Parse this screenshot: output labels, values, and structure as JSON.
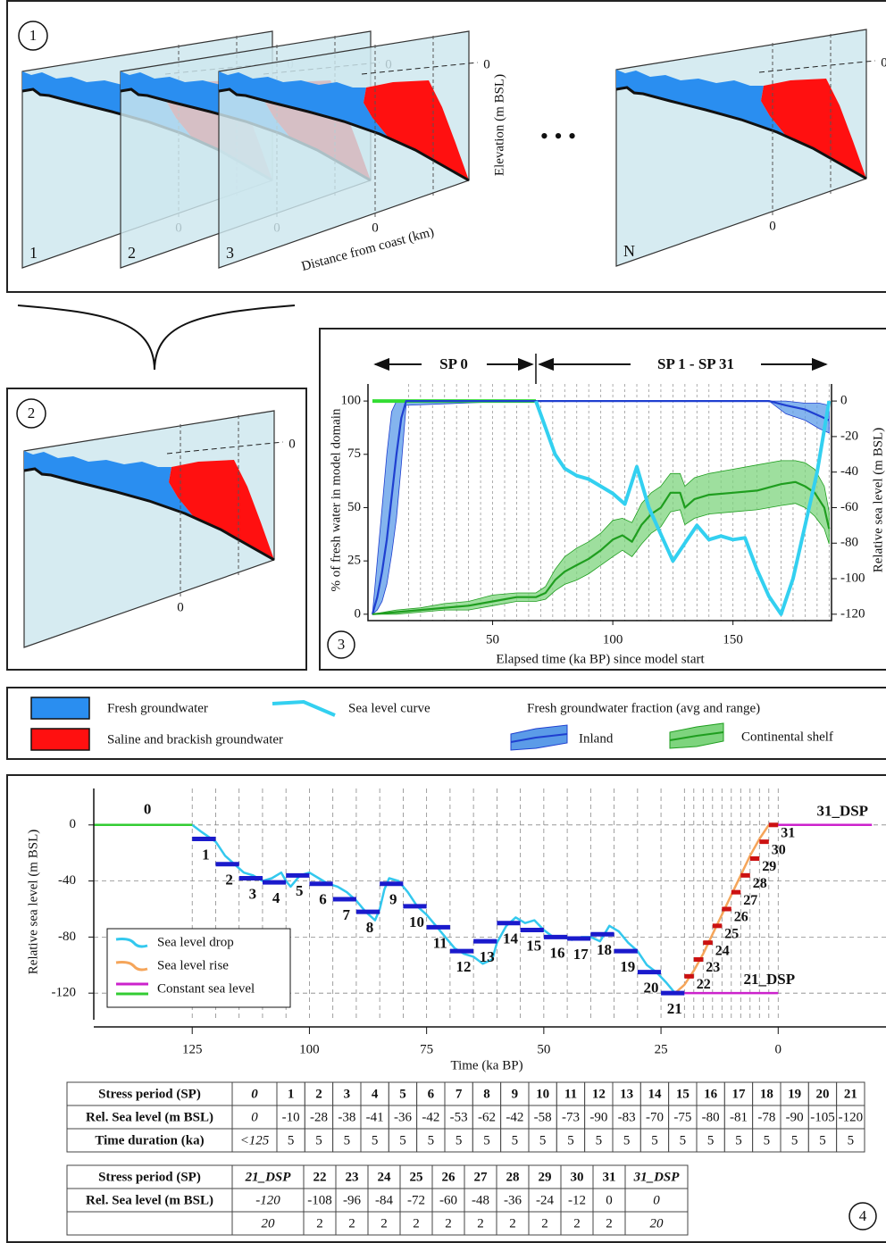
{
  "panel1": {
    "number": "1",
    "slices": [
      "1",
      "2",
      "3",
      "N"
    ],
    "zero": "0",
    "y_label": "Elevation (m BSL)",
    "x_label": "Distance from coast (km)",
    "ellipsis": "• • •"
  },
  "panel2": {
    "number": "2",
    "zero": "0"
  },
  "legend": {
    "fresh": "Fresh groundwater",
    "saline": "Saline and brackish groundwater",
    "fraction_title": "Fresh groundwater fraction (avg and range)",
    "fresh_color": "#2a8ef0",
    "saline_color": "#ff1010"
  },
  "chart_data": [
    {
      "type": "line",
      "number": "3",
      "phase_labels": [
        "SP 0",
        "SP 1 - SP 31"
      ],
      "x_label": "Elapsed time (ka BP) since model start",
      "y_label": "% of fresh water in model domain",
      "y2_label": "Relative sea level (m BSL)",
      "xlim": [
        0,
        191
      ],
      "xticks": [
        50,
        100,
        150
      ],
      "ylim": [
        -3,
        108
      ],
      "yticks": [
        0,
        25,
        50,
        75,
        100
      ],
      "y2lim": [
        -123.6,
        9.6
      ],
      "y2ticks": [
        0,
        -20,
        -40,
        -60,
        -80,
        -100,
        -120
      ],
      "series": [
        {
          "name": "Sea level curve",
          "color": "#33d0f0",
          "axis": "y2",
          "x": [
            68,
            72,
            76,
            80,
            85,
            90,
            95,
            100,
            105,
            110,
            115,
            120,
            125,
            130,
            135,
            140,
            145,
            150,
            155,
            160,
            165,
            170,
            175,
            180,
            185,
            190
          ],
          "values": [
            0,
            -15,
            -30,
            -38,
            -42,
            -44,
            -48,
            -52,
            -58,
            -37,
            -60,
            -75,
            -90,
            -80,
            -70,
            -78,
            -76,
            -78,
            -77,
            -95,
            -110,
            -120,
            -100,
            -70,
            -40,
            0
          ]
        },
        {
          "name": "Inland",
          "color": "#1f3fd0",
          "band_color": "#5b9be8",
          "x": [
            0,
            2,
            4,
            6,
            8,
            10,
            12,
            14,
            60,
            120,
            165,
            172,
            180,
            186,
            190
          ],
          "values": [
            0,
            8,
            20,
            35,
            55,
            75,
            92,
            100,
            100,
            100,
            100,
            98,
            96,
            93,
            91
          ],
          "lower": [
            0,
            2,
            6,
            14,
            28,
            45,
            70,
            98,
            100,
            100,
            100,
            94,
            91,
            87,
            85
          ],
          "upper": [
            0,
            25,
            50,
            75,
            95,
            100,
            100,
            100,
            100,
            100,
            100,
            100,
            99,
            99,
            98
          ]
        },
        {
          "name": "Continental shelf",
          "color": "#1f9e1f",
          "band_color": "#7ed47e",
          "x": [
            0,
            10,
            20,
            30,
            40,
            50,
            60,
            68,
            72,
            76,
            80,
            85,
            90,
            95,
            100,
            104,
            108,
            112,
            116,
            120,
            124,
            128,
            130,
            134,
            140,
            150,
            160,
            170,
            176,
            180,
            184,
            188,
            190
          ],
          "values": [
            0,
            1,
            2,
            3,
            4,
            6,
            8,
            8,
            10,
            16,
            20,
            23,
            26,
            30,
            35,
            37,
            34,
            42,
            47,
            50,
            57,
            57,
            50,
            54,
            56,
            57,
            58,
            61,
            62,
            60,
            57,
            50,
            40
          ],
          "lower": [
            0,
            0,
            1,
            2,
            2,
            4,
            6,
            6,
            7,
            11,
            14,
            16,
            19,
            23,
            27,
            30,
            27,
            33,
            38,
            41,
            48,
            49,
            42,
            45,
            47,
            48,
            49,
            51,
            52,
            50,
            46,
            40,
            33
          ],
          "upper": [
            0,
            2,
            3,
            5,
            6,
            9,
            10,
            10,
            13,
            21,
            27,
            31,
            34,
            38,
            44,
            45,
            43,
            52,
            57,
            60,
            66,
            66,
            60,
            64,
            66,
            68,
            70,
            72,
            72,
            71,
            68,
            60,
            48
          ]
        },
        {
          "color": "#33dd33",
          "axis": "y2",
          "x": [
            0,
            68
          ],
          "values": [
            0,
            0
          ]
        }
      ]
    },
    {
      "type": "line",
      "number": "4",
      "x_label": "Time (ka BP)",
      "y_label": "Relative sea level (m BSL)",
      "xlim": [
        146,
        -23
      ],
      "xticks": [
        125,
        100,
        75,
        50,
        25,
        0
      ],
      "ylim": [
        -139,
        26
      ],
      "yticks": [
        0,
        -40,
        -80,
        -120
      ],
      "grid": true,
      "colors": {
        "sp0": "#33cc33",
        "drop": "#1a1acc",
        "rise": "#cc1111",
        "dsp": "#cc22cc"
      },
      "constant_label": "Constant sea level",
      "series": [
        {
          "name": "Sea level drop",
          "color": "#33c8ee",
          "x": [
            125,
            123,
            120,
            118,
            116,
            114,
            112,
            110,
            108,
            106,
            105,
            104,
            102,
            100,
            98,
            96,
            94,
            92,
            90,
            88,
            86,
            85,
            84,
            83,
            81,
            79,
            77,
            75,
            73,
            71,
            69,
            67,
            65,
            63,
            61,
            60,
            58,
            56,
            54,
            52,
            50,
            48,
            46,
            44,
            42,
            40,
            38,
            36,
            34,
            32,
            30,
            28,
            26,
            24,
            22
          ],
          "values": [
            0,
            -5,
            -12,
            -22,
            -28,
            -34,
            -36,
            -40,
            -38,
            -34,
            -40,
            -44,
            -36,
            -34,
            -38,
            -42,
            -44,
            -48,
            -54,
            -62,
            -68,
            -60,
            -46,
            -38,
            -40,
            -48,
            -58,
            -64,
            -72,
            -80,
            -88,
            -92,
            -94,
            -99,
            -96,
            -84,
            -72,
            -66,
            -70,
            -68,
            -75,
            -80,
            -80,
            -82,
            -80,
            -80,
            -83,
            -72,
            -76,
            -84,
            -90,
            -100,
            -105,
            -112,
            -120
          ]
        },
        {
          "name": "Sea level rise",
          "color": "#f5a55a",
          "x": [
            22,
            20,
            18,
            16,
            14,
            12,
            10,
            8,
            6,
            4,
            2
          ],
          "values": [
            -120,
            -114,
            -104,
            -92,
            -78,
            -64,
            -50,
            -36,
            -22,
            -10,
            0
          ]
        }
      ]
    }
  ],
  "tables": [
    {
      "row_headers": [
        "Stress period (SP)",
        "Rel. Sea level (m BSL)",
        "Time duration (ka)"
      ],
      "columns": [
        {
          "sp": "0",
          "level": 0,
          "duration": "<125"
        },
        {
          "sp": "1",
          "level": -10,
          "duration": 5
        },
        {
          "sp": "2",
          "level": -28,
          "duration": 5
        },
        {
          "sp": "3",
          "level": -38,
          "duration": 5
        },
        {
          "sp": "4",
          "level": -41,
          "duration": 5
        },
        {
          "sp": "5",
          "level": -36,
          "duration": 5
        },
        {
          "sp": "6",
          "level": -42,
          "duration": 5
        },
        {
          "sp": "7",
          "level": -53,
          "duration": 5
        },
        {
          "sp": "8",
          "level": -62,
          "duration": 5
        },
        {
          "sp": "9",
          "level": -42,
          "duration": 5
        },
        {
          "sp": "10",
          "level": -58,
          "duration": 5
        },
        {
          "sp": "11",
          "level": -73,
          "duration": 5
        },
        {
          "sp": "12",
          "level": -90,
          "duration": 5
        },
        {
          "sp": "13",
          "level": -83,
          "duration": 5
        },
        {
          "sp": "14",
          "level": -70,
          "duration": 5
        },
        {
          "sp": "15",
          "level": -75,
          "duration": 5
        },
        {
          "sp": "16",
          "level": -80,
          "duration": 5
        },
        {
          "sp": "17",
          "level": -81,
          "duration": 5
        },
        {
          "sp": "18",
          "level": -78,
          "duration": 5
        },
        {
          "sp": "19",
          "level": -90,
          "duration": 5
        },
        {
          "sp": "20",
          "level": -105,
          "duration": 5
        },
        {
          "sp": "21",
          "level": -120,
          "duration": 5
        }
      ]
    },
    {
      "row_headers": [
        "Stress period (SP)",
        "Rel. Sea level (m BSL)"
      ],
      "columns": [
        {
          "sp": "21_DSP",
          "level": -120,
          "duration": 20
        },
        {
          "sp": "22",
          "level": -108,
          "duration": 2
        },
        {
          "sp": "23",
          "level": -96,
          "duration": 2
        },
        {
          "sp": "24",
          "level": -84,
          "duration": 2
        },
        {
          "sp": "25",
          "level": -72,
          "duration": 2
        },
        {
          "sp": "26",
          "level": -60,
          "duration": 2
        },
        {
          "sp": "27",
          "level": -48,
          "duration": 2
        },
        {
          "sp": "28",
          "level": -36,
          "duration": 2
        },
        {
          "sp": "29",
          "level": -24,
          "duration": 2
        },
        {
          "sp": "30",
          "level": -12,
          "duration": 2
        },
        {
          "sp": "31",
          "level": 0,
          "duration": 2
        },
        {
          "sp": "31_DSP",
          "level": 0,
          "duration": 20
        }
      ]
    }
  ]
}
